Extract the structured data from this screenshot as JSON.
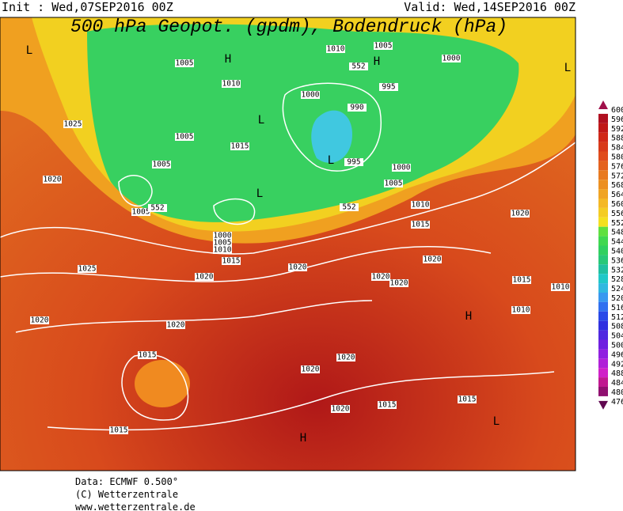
{
  "header": {
    "init": "Init : Wed,07SEP2016 00Z",
    "valid": "Valid: Wed,14SEP2016 00Z",
    "title": "500 hPa Geopot. (gpdm), Bodendruck (hPa)"
  },
  "colorbar": {
    "labels": [
      "600",
      "596",
      "592",
      "588",
      "584",
      "580",
      "576",
      "572",
      "568",
      "564",
      "560",
      "556",
      "552",
      "548",
      "544",
      "540",
      "536",
      "532",
      "528",
      "524",
      "520",
      "516",
      "512",
      "508",
      "504",
      "500",
      "496",
      "492",
      "488",
      "484",
      "480",
      "476"
    ]
  },
  "map": {
    "labels": [
      "L",
      "1005",
      "H",
      "1010",
      "552",
      "H",
      "1005",
      "1000",
      "L",
      "1010",
      "995",
      "1000",
      "990",
      "1025",
      "L",
      "1005",
      "1015",
      "L",
      "995",
      "1000",
      "1005",
      "1005",
      "1020",
      "L",
      "1005",
      "552",
      "552",
      "1010",
      "1020",
      "1015",
      "1000",
      "1005",
      "1010",
      "1015",
      "1025",
      "1020",
      "1020",
      "1020",
      "1015",
      "1020",
      "1020",
      "1010",
      "1010",
      "1020",
      "1020",
      "H",
      "1015",
      "1020",
      "1020",
      "1015",
      "1020",
      "1015",
      "L",
      "1015",
      "H"
    ]
  },
  "footer": {
    "lines": [
      "Data: ECMWF  0.500°",
      "(C) Wetterzentrale",
      "www.wetterzentrale.de"
    ]
  }
}
